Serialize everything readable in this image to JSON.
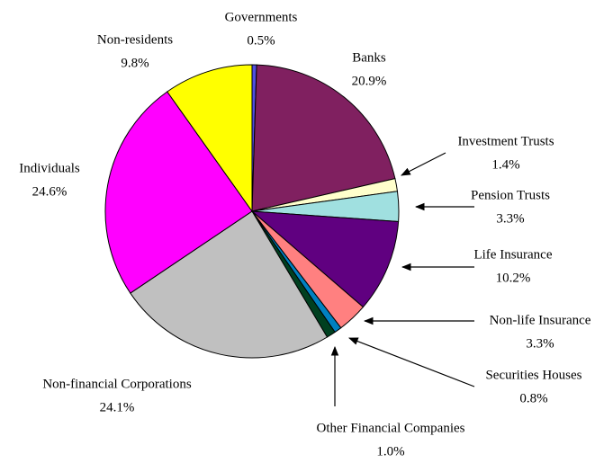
{
  "chart_data": {
    "type": "pie",
    "categories": [
      "Governments",
      "Banks",
      "Investment Trusts",
      "Pension Trusts",
      "Life Insurance",
      "Non-life Insurance",
      "Securities Houses",
      "Other Financial Companies",
      "Non-financial Corporations",
      "Individuals",
      "Non-residents"
    ],
    "values": [
      0.5,
      20.9,
      1.4,
      3.3,
      10.2,
      3.3,
      0.8,
      1.0,
      24.1,
      24.6,
      9.8
    ],
    "value_labels": [
      "0.5%",
      "20.9%",
      "1.4%",
      "3.3%",
      "10.2%",
      "3.3%",
      "0.8%",
      "1.0%",
      "24.1%",
      "24.6%",
      "9.8%"
    ],
    "colors": [
      "#5050e0",
      "#802060",
      "#ffffcc",
      "#a0e0e0",
      "#600080",
      "#ff8080",
      "#0080c0",
      "#004020",
      "#c0c0c0",
      "#ff00ff",
      "#ffff00"
    ]
  }
}
